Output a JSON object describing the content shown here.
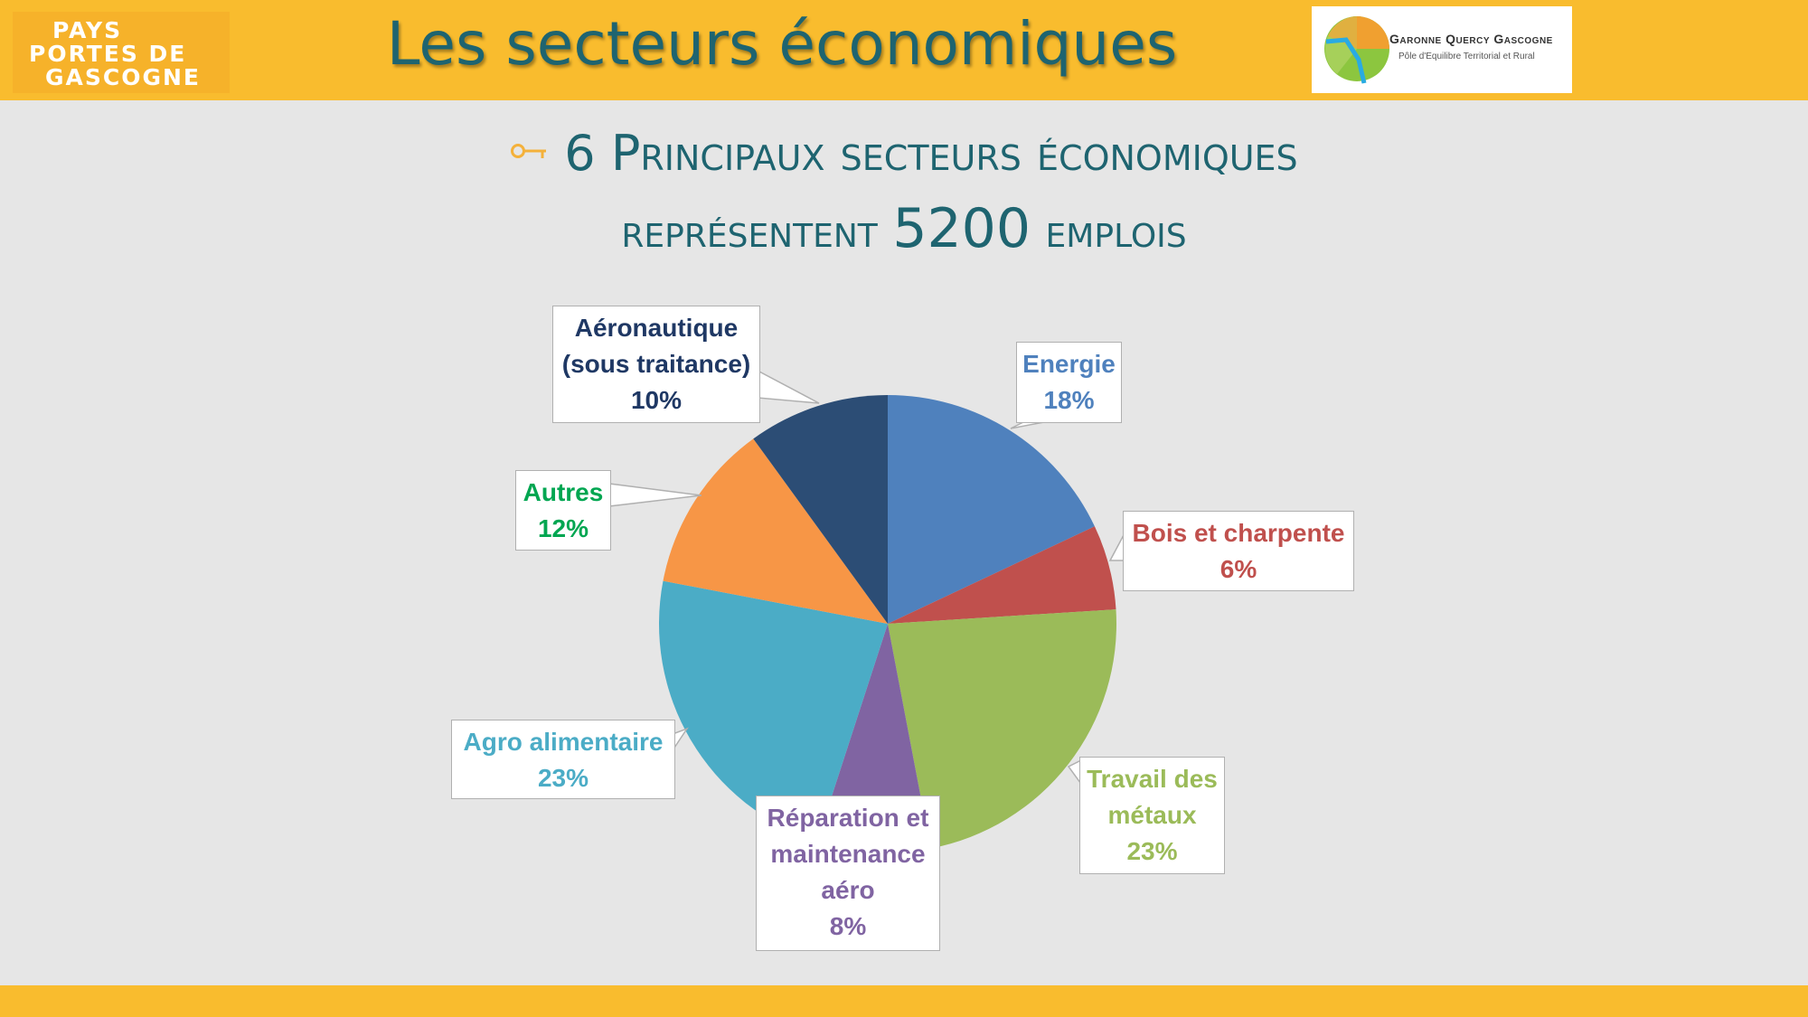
{
  "header": {
    "title": "Les secteurs économiques",
    "logo_left": {
      "line1": "PAYS",
      "line2": "PORTES DE",
      "line3": "GASCOGNE"
    },
    "logo_right": {
      "name": "Garonne Quercy Gascogne",
      "subtitle": "Pôle d'Equilibre Territorial et Rural"
    }
  },
  "subtitle": {
    "line1": "6 Principaux secteurs économiques",
    "line2_prefix": "représentent",
    "line2_number": "5200",
    "line2_suffix": "emplois"
  },
  "colors": {
    "accent": "#f9bc2e",
    "title": "#1e6470"
  },
  "chart_data": {
    "type": "pie",
    "slices": [
      {
        "name": "Energie",
        "value": 18,
        "label": "18%",
        "color": "#4f81bd"
      },
      {
        "name": "Bois et charpente",
        "value": 6,
        "label": "6%",
        "color": "#c0504d"
      },
      {
        "name": "Travail des métaux",
        "value": 23,
        "label": "23%",
        "color": "#9bbb59"
      },
      {
        "name": "Réparation et maintenance aéro",
        "value": 8,
        "label": "8%",
        "color": "#8064a2"
      },
      {
        "name": "Agro alimentaire",
        "value": 23,
        "label": "23%",
        "color": "#4bacc6"
      },
      {
        "name": "Autres",
        "value": 12,
        "label": "12%",
        "color": "#f79646"
      },
      {
        "name": "Aéronautique (sous traitance)",
        "value": 10,
        "label": "10%",
        "color": "#2c4d75"
      }
    ],
    "labels": {
      "energie": {
        "l1": "Energie",
        "pct": "18%"
      },
      "bois": {
        "l1": "Bois et charpente",
        "pct": "6%"
      },
      "metaux": {
        "l1": "Travail des",
        "l2": "métaux",
        "pct": "23%"
      },
      "reparation": {
        "l1": "Réparation et",
        "l2": "maintenance",
        "l3": "aéro",
        "pct": "8%"
      },
      "agro": {
        "l1": "Agro alimentaire",
        "pct": "23%"
      },
      "autres": {
        "l1": "Autres",
        "pct": "12%"
      },
      "aero": {
        "l1": "Aéronautique",
        "l2": "(sous traitance)",
        "pct": "10%"
      }
    },
    "label_colors": {
      "energie": "#4f81bd",
      "bois": "#c0504d",
      "metaux": "#9bbb59",
      "reparation": "#8064a2",
      "agro": "#4bacc6",
      "autres": "#00a651",
      "aero": "#1f3864"
    }
  }
}
